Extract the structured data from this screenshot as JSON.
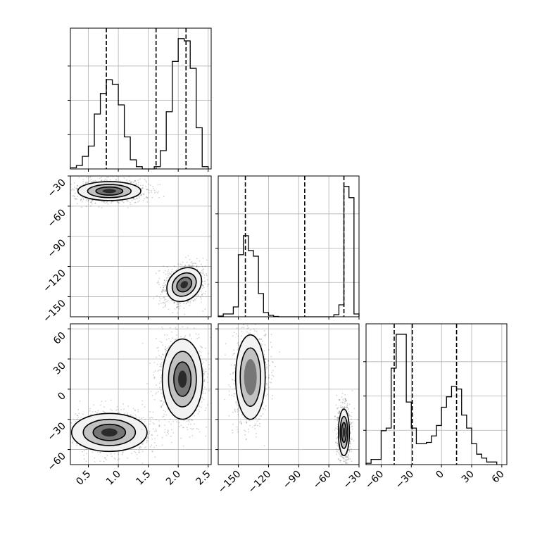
{
  "chart_data": {
    "type": "corner",
    "parameters": [
      {
        "id": "p0",
        "lim": [
          0.2,
          2.55
        ],
        "ticks": [
          0.5,
          1.0,
          1.5,
          2.0,
          2.5
        ],
        "tick_labels": [
          "0.5",
          "1.0",
          "1.5",
          "2.0",
          "2.5"
        ],
        "histogram": {
          "bin_edges": [
            0.2,
            0.3,
            0.4,
            0.5,
            0.6,
            0.7,
            0.8,
            0.9,
            1.0,
            1.1,
            1.2,
            1.3,
            1.4,
            1.5,
            1.6,
            1.7,
            1.8,
            1.9,
            2.0,
            2.1,
            2.2,
            2.3,
            2.4,
            2.5
          ],
          "counts": [
            0.5,
            1.5,
            5.5,
            10,
            24,
            33,
            39,
            37,
            28,
            14,
            4,
            1,
            0,
            0,
            1,
            8,
            25,
            47,
            57,
            56,
            44,
            18,
            1
          ]
        },
        "quantiles": [
          0.8,
          1.63,
          2.13
        ]
      },
      {
        "id": "p1",
        "lim": [
          -170,
          -30
        ],
        "ticks": [
          -150,
          -120,
          -90,
          -60,
          -30
        ],
        "tick_labels": [
          "−150",
          "−120",
          "−90",
          "−60",
          "−30"
        ],
        "histogram": {
          "bin_edges": [
            -170,
            -165,
            -160,
            -155,
            -150,
            -145,
            -140,
            -135,
            -130,
            -125,
            -120,
            -115,
            -110,
            -105,
            -100,
            -95,
            -90,
            -85,
            -80,
            -75,
            -70,
            -65,
            -60,
            -55,
            -50,
            -45,
            -40,
            -35,
            -30
          ],
          "counts": [
            1,
            4,
            4,
            14,
            88,
            115,
            94,
            86,
            33,
            6,
            2,
            0.5,
            0,
            0,
            0,
            0,
            0,
            0,
            0,
            0,
            0,
            0,
            0,
            3,
            17,
            185,
            169,
            4
          ]
        },
        "quantiles": [
          -143,
          -84,
          -45
        ]
      },
      {
        "id": "p2",
        "lim": [
          -75,
          65
        ],
        "ticks": [
          -60,
          -30,
          0,
          30,
          60
        ],
        "tick_labels": [
          "−60",
          "−30",
          "0",
          "30",
          "60"
        ],
        "histogram": {
          "bin_edges": [
            -75,
            -70,
            -65,
            -60,
            -55,
            -50,
            -45,
            -40,
            -35,
            -30,
            -25,
            -20,
            -15,
            -10,
            -5,
            0,
            5,
            10,
            15,
            20,
            25,
            30,
            35,
            40,
            45,
            50,
            55
          ],
          "counts": [
            0.5,
            2,
            2,
            13,
            14,
            37,
            50,
            50,
            24,
            14,
            8,
            8,
            8.5,
            11,
            15,
            22,
            26,
            30,
            29,
            19,
            14,
            8,
            4,
            2.5,
            1,
            1
          ]
        },
        "quantiles": [
          -47,
          -29,
          15
        ]
      }
    ],
    "pairs": [
      {
        "x": "p0",
        "y": "p1",
        "modes": [
          {
            "cx": 0.85,
            "cy": -45,
            "sx": 0.25,
            "sy": 4.5,
            "angle": 0,
            "levels": 3
          },
          {
            "cx": 2.1,
            "cy": -138,
            "sx": 0.12,
            "sy": 9,
            "angle": 48,
            "levels": 3
          }
        ]
      },
      {
        "x": "p0",
        "y": "p2",
        "modes": [
          {
            "cx": 0.85,
            "cy": -43,
            "sx": 0.3,
            "sy": 9,
            "angle": 0,
            "levels": 3
          },
          {
            "cx": 2.07,
            "cy": 10,
            "sx": 0.16,
            "sy": 19,
            "angle": 0,
            "levels": 3
          }
        ]
      },
      {
        "x": "p1",
        "y": "p2",
        "modes": [
          {
            "cx": -138,
            "cy": 12,
            "sx": 7,
            "sy": 20,
            "angle": 0,
            "levels": 2
          },
          {
            "cx": -45,
            "cy": -43,
            "sx": 2.6,
            "sy": 11,
            "angle": 0,
            "levels": 3
          }
        ]
      }
    ],
    "grid": true,
    "title": "",
    "xlabel": "",
    "ylabel": ""
  }
}
